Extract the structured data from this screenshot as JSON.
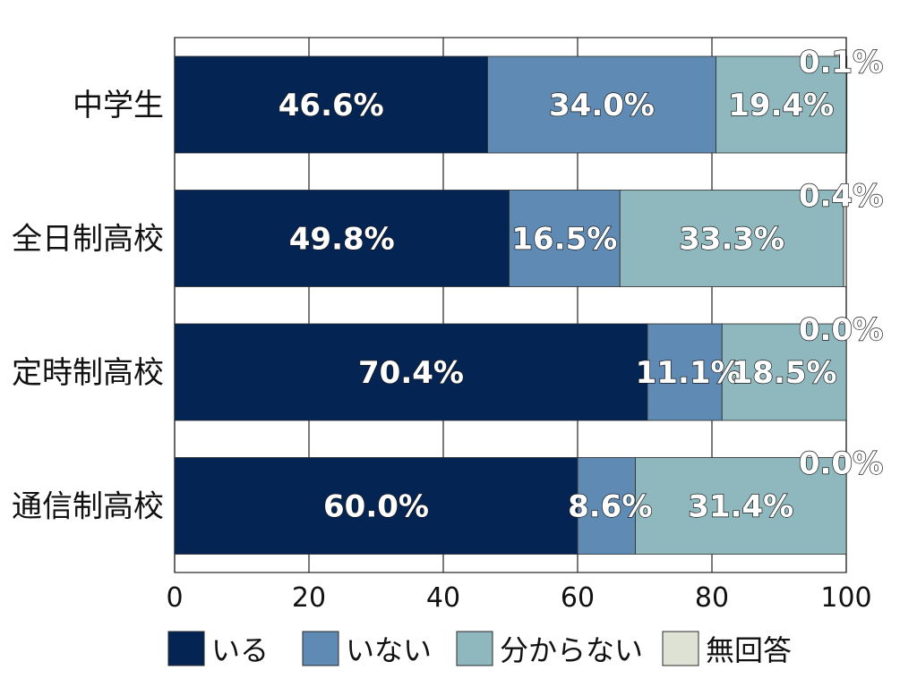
{
  "chart_data": {
    "type": "bar",
    "orientation": "horizontal",
    "stacked": true,
    "categories": [
      "中学生",
      "全日制高校",
      "定時制高校",
      "通信制高校"
    ],
    "series": [
      {
        "name": "いる",
        "color": "#042454",
        "values": [
          46.6,
          49.8,
          70.4,
          60.0
        ]
      },
      {
        "name": "いない",
        "color": "#5f8ab4",
        "values": [
          34.0,
          16.5,
          11.1,
          8.6
        ]
      },
      {
        "name": "分からない",
        "color": "#8fb7be",
        "values": [
          19.4,
          33.3,
          18.5,
          31.4
        ]
      },
      {
        "name": "無回答",
        "color": "#dde2d4",
        "values": [
          0.1,
          0.4,
          0.0,
          0.0
        ]
      }
    ],
    "data_labels": [
      [
        "46.6%",
        "34.0%",
        "19.4%",
        "0.1%"
      ],
      [
        "49.8%",
        "16.5%",
        "33.3%",
        "0.4%"
      ],
      [
        "70.4%",
        "11.1%",
        "18.5%",
        "0.0%"
      ],
      [
        "60.0%",
        "8.6%",
        "31.4%",
        "0.0%"
      ]
    ],
    "x_ticks": [
      "0",
      "20",
      "40",
      "60",
      "80",
      "100"
    ],
    "xlim": [
      0,
      100
    ],
    "grid": true,
    "legend_position": "bottom"
  }
}
